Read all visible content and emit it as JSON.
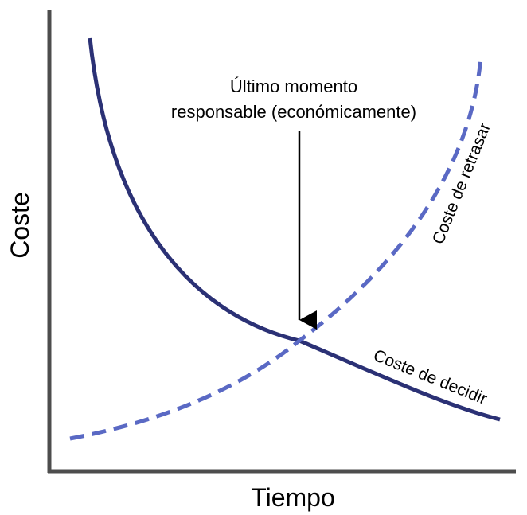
{
  "diagram": {
    "y_axis_label": "Coste",
    "x_axis_label": "Tiempo",
    "annotation": {
      "line1": "Último momento",
      "line2": "responsable (económicamente)"
    },
    "curves": {
      "decide": {
        "label": "Coste de decidir",
        "color": "#2b3175",
        "style": "solid"
      },
      "delay": {
        "label": "Coste de retrasar",
        "color": "#5a69c4",
        "style": "dashed"
      }
    },
    "axis_color": "#4d4d4d",
    "arrow_color": "#000000"
  }
}
